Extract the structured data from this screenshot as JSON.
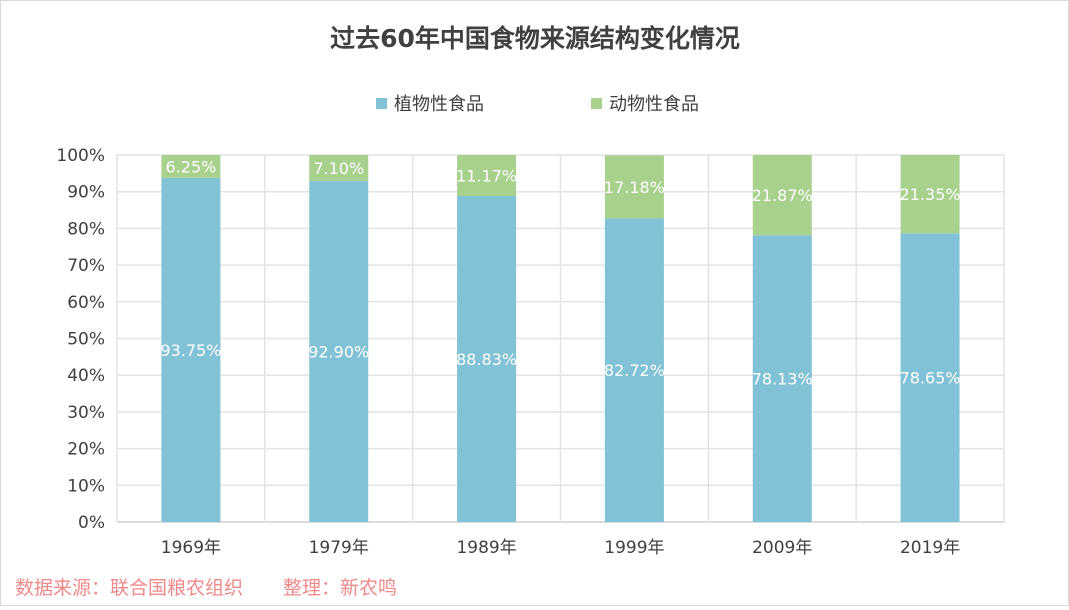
{
  "chart_data": {
    "type": "bar",
    "stacked": true,
    "title": "过去60年中国食物来源结构变化情况",
    "categories": [
      "1969年",
      "1979年",
      "1989年",
      "1999年",
      "2009年",
      "2019年"
    ],
    "series": [
      {
        "name": "植物性食品",
        "color": "#82c2d6",
        "values": [
          93.75,
          92.9,
          88.83,
          82.72,
          78.13,
          78.65
        ],
        "labels": [
          "93.75%",
          "92.90%",
          "88.83%",
          "82.72%",
          "78.13%",
          "78.65%"
        ]
      },
      {
        "name": "动物性食品",
        "color": "#a9d18e",
        "values": [
          6.25,
          7.1,
          11.17,
          17.18,
          21.87,
          21.35
        ],
        "labels": [
          "6.25%",
          "7.10%",
          "11.17%",
          "17.18%",
          "21.87%",
          "21.35%"
        ]
      }
    ],
    "y_ticks": [
      "0%",
      "10%",
      "20%",
      "30%",
      "40%",
      "50%",
      "60%",
      "70%",
      "80%",
      "90%",
      "100%"
    ],
    "ylim": [
      0,
      100
    ],
    "grid": true,
    "legend_position": "top-center"
  },
  "footer": {
    "source": "数据来源：联合国粮农组织",
    "credit": "整理：新农鸣"
  }
}
